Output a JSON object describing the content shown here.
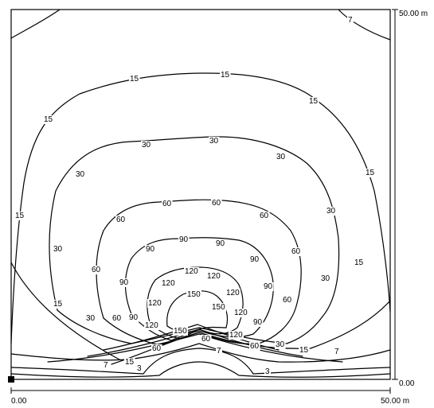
{
  "scale": {
    "y_top_label": "50.00 m",
    "y_bottom_label": "0.00",
    "x_left_label": "0.00",
    "x_right_label": "50.00 m"
  },
  "contour_values": [
    "3",
    "7",
    "15",
    "30",
    "60",
    "90",
    "120",
    "150"
  ],
  "labels": {
    "c7_a": "7",
    "c7_b": "7",
    "c7_c": "7",
    "c7_d": "7",
    "c3_a": "3",
    "c3_b": "3",
    "c15_a": "15",
    "c15_b": "15",
    "c15_c": "15",
    "c15_d": "15",
    "c15_e": "15",
    "c15_f": "15",
    "c15_g": "15",
    "c15_h": "15",
    "c15_i": "15",
    "c30_a": "30",
    "c30_b": "30",
    "c30_c": "30",
    "c30_d": "30",
    "c30_e": "30",
    "c30_f": "30",
    "c30_g": "30",
    "c30_h": "30",
    "c60_a": "60",
    "c60_b": "60",
    "c60_c": "60",
    "c60_d": "60",
    "c60_e": "60",
    "c60_f": "60",
    "c60_g": "60",
    "c60_h": "60",
    "c60_i": "60",
    "c90_a": "90",
    "c90_b": "90",
    "c90_c": "90",
    "c90_d": "90",
    "c90_e": "90",
    "c90_f": "90",
    "c90_g": "90",
    "c90_h": "90",
    "c120_a": "120",
    "c120_b": "120",
    "c120_c": "120",
    "c120_d": "120",
    "c120_e": "120",
    "c120_f": "120",
    "c120_g": "120",
    "c120_h": "120",
    "c150_a": "150",
    "c150_b": "150",
    "c150_c": "150"
  }
}
